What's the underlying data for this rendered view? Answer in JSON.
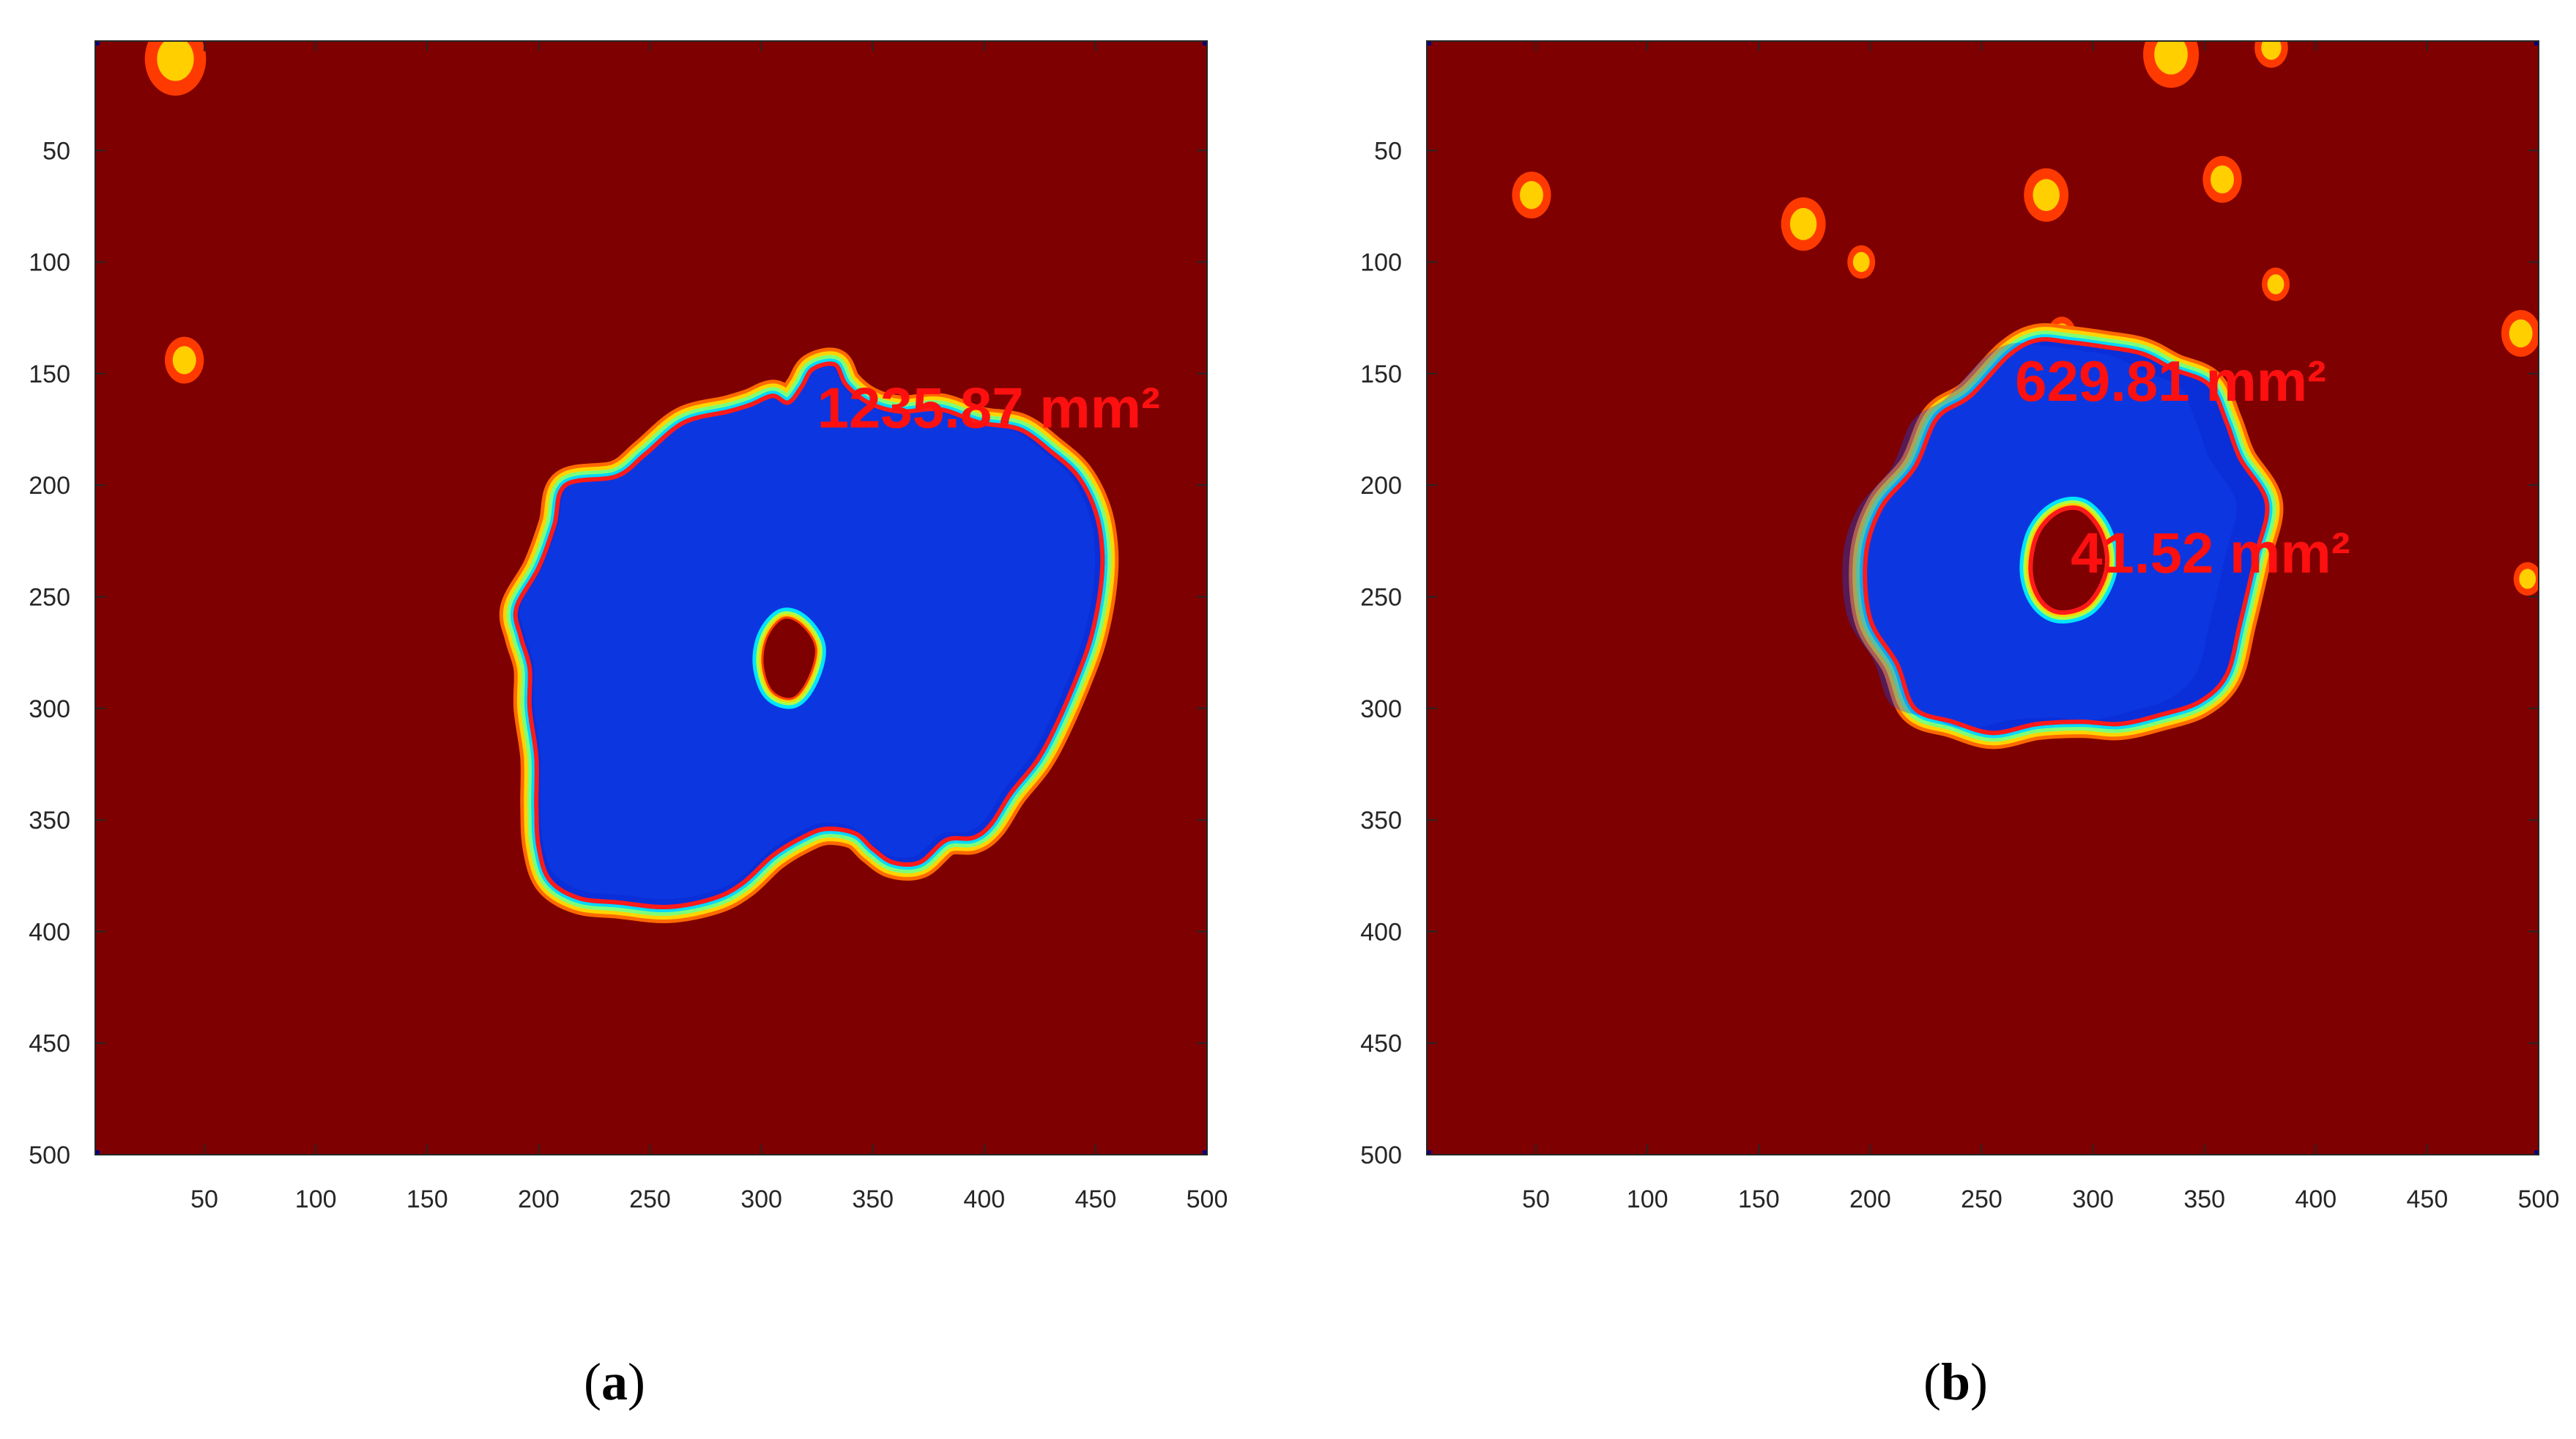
{
  "figure": {
    "colors": {
      "background_field": "#7f0000",
      "contour": "#ff1a1a",
      "label": "#ff1010",
      "frame": "#262626",
      "colormap": "jet"
    }
  },
  "chart_data": [
    {
      "type": "heatmap",
      "panel": "a",
      "caption": {
        "open": "(",
        "letter": "a",
        "close": ")"
      },
      "xlim": [
        1,
        500
      ],
      "ylim": [
        1,
        500
      ],
      "y_reversed": true,
      "x_ticks": [
        50,
        100,
        150,
        200,
        250,
        300,
        350,
        400,
        450,
        500
      ],
      "y_ticks": [
        50,
        100,
        150,
        200,
        250,
        300,
        350,
        400,
        450,
        500
      ],
      "grid": false,
      "annotations": [
        {
          "text": "1235.87 mm²",
          "x": 325,
          "y": 165
        }
      ],
      "regions": [
        {
          "role": "outer",
          "label": "1235.87 mm²",
          "contour": [
            [
              190,
              255
            ],
            [
              200,
              237
            ],
            [
              207,
              218
            ],
            [
              212,
              200
            ],
            [
              235,
              196
            ],
            [
              248,
              186
            ],
            [
              265,
              172
            ],
            [
              285,
              167
            ],
            [
              295,
              164
            ],
            [
              305,
              160
            ],
            [
              312,
              163
            ],
            [
              318,
              156
            ],
            [
              323,
              148
            ],
            [
              333,
              146
            ],
            [
              338,
              155
            ],
            [
              348,
              163
            ],
            [
              362,
              167
            ],
            [
              380,
              166
            ],
            [
              398,
              172
            ],
            [
              416,
              175
            ],
            [
              430,
              185
            ],
            [
              442,
              196
            ],
            [
              450,
              212
            ],
            [
              453,
              230
            ],
            [
              452,
              248
            ],
            [
              448,
              268
            ],
            [
              442,
              285
            ],
            [
              433,
              306
            ],
            [
              424,
              323
            ],
            [
              412,
              338
            ],
            [
              403,
              352
            ],
            [
              395,
              358
            ],
            [
              383,
              359
            ],
            [
              371,
              369
            ],
            [
              359,
              369
            ],
            [
              350,
              363
            ],
            [
              342,
              356
            ],
            [
              329,
              354
            ],
            [
              318,
              358
            ],
            [
              305,
              366
            ],
            [
              292,
              378
            ],
            [
              279,
              385
            ],
            [
              258,
              389
            ],
            [
              236,
              387
            ],
            [
              218,
              385
            ],
            [
              205,
              377
            ],
            [
              200,
              362
            ],
            [
              199,
              344
            ],
            [
              199,
              322
            ],
            [
              196,
              300
            ],
            [
              196,
              282
            ],
            [
              192,
              268
            ]
          ]
        },
        {
          "role": "inner",
          "label": "",
          "contour": [
            [
              301,
              280
            ],
            [
              303,
              268
            ],
            [
              310,
              260
            ],
            [
              318,
              263
            ],
            [
              324,
              273
            ],
            [
              321,
              286
            ],
            [
              314,
              295
            ],
            [
              305,
              292
            ]
          ]
        }
      ],
      "spots": [
        {
          "x": 37,
          "y": 9,
          "r": 11
        },
        {
          "x": 41,
          "y": 144,
          "r": 7
        }
      ]
    },
    {
      "type": "heatmap",
      "panel": "b",
      "caption": {
        "open": "(",
        "letter": "b",
        "close": ")"
      },
      "xlim": [
        1,
        500
      ],
      "ylim": [
        1,
        500
      ],
      "y_reversed": true,
      "x_ticks": [
        50,
        100,
        150,
        200,
        250,
        300,
        350,
        400,
        450,
        500
      ],
      "y_ticks": [
        50,
        100,
        150,
        200,
        250,
        300,
        350,
        400,
        450,
        500
      ],
      "grid": false,
      "annotations": [
        {
          "text": "629.81 mm²",
          "x": 265,
          "y": 153
        },
        {
          "text": "41.52 mm²",
          "x": 290,
          "y": 230
        }
      ],
      "regions": [
        {
          "role": "outer",
          "label": "629.81 mm²",
          "contour": [
            [
              198,
              232
            ],
            [
              205,
              210
            ],
            [
              220,
              192
            ],
            [
              230,
              170
            ],
            [
              245,
              160
            ],
            [
              262,
              142
            ],
            [
              275,
              135
            ],
            [
              290,
              136
            ],
            [
              305,
              138
            ],
            [
              322,
              141
            ],
            [
              336,
              148
            ],
            [
              352,
              155
            ],
            [
              360,
              172
            ],
            [
              366,
              188
            ],
            [
              378,
              208
            ],
            [
              373,
              232
            ],
            [
              366,
              262
            ],
            [
              360,
              285
            ],
            [
              348,
              297
            ],
            [
              330,
              303
            ],
            [
              312,
              307
            ],
            [
              295,
              306
            ],
            [
              275,
              307
            ],
            [
              255,
              311
            ],
            [
              237,
              306
            ],
            [
              220,
              300
            ],
            [
              212,
              280
            ],
            [
              200,
              260
            ]
          ]
        },
        {
          "role": "inner",
          "label": "41.52 mm²",
          "contour": [
            [
              272,
              238
            ],
            [
              275,
              222
            ],
            [
              284,
              212
            ],
            [
              295,
              211
            ],
            [
              304,
              222
            ],
            [
              306,
              238
            ],
            [
              298,
              253
            ],
            [
              285,
              257
            ],
            [
              276,
              251
            ]
          ]
        }
      ],
      "spots": [
        {
          "x": 48,
          "y": 70,
          "r": 7
        },
        {
          "x": 170,
          "y": 83,
          "r": 8
        },
        {
          "x": 196,
          "y": 100,
          "r": 5
        },
        {
          "x": 279,
          "y": 70,
          "r": 8
        },
        {
          "x": 335,
          "y": 7,
          "r": 10
        },
        {
          "x": 380,
          "y": 4,
          "r": 6
        },
        {
          "x": 358,
          "y": 63,
          "r": 7
        },
        {
          "x": 382,
          "y": 110,
          "r": 5
        },
        {
          "x": 286,
          "y": 132,
          "r": 5
        },
        {
          "x": 492,
          "y": 132,
          "r": 7
        },
        {
          "x": 495,
          "y": 242,
          "r": 5
        }
      ]
    }
  ]
}
